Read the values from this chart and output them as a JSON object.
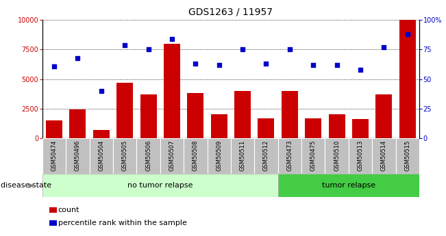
{
  "title": "GDS1263 / 11957",
  "samples": [
    "GSM50474",
    "GSM50496",
    "GSM50504",
    "GSM50505",
    "GSM50506",
    "GSM50507",
    "GSM50508",
    "GSM50509",
    "GSM50511",
    "GSM50512",
    "GSM50473",
    "GSM50475",
    "GSM50510",
    "GSM50513",
    "GSM50514",
    "GSM50515"
  ],
  "counts": [
    1500,
    2400,
    700,
    4700,
    3700,
    8000,
    3800,
    2000,
    4000,
    1700,
    4000,
    1700,
    2000,
    1600,
    3700,
    10000
  ],
  "percentiles": [
    61,
    68,
    40,
    79,
    75,
    84,
    63,
    62,
    75,
    63,
    75,
    62,
    62,
    58,
    77,
    88
  ],
  "no_tumor_count": 10,
  "tumor_count": 6,
  "bar_color": "#cc0000",
  "dot_color": "#0000cc",
  "no_tumor_color": "#ccffcc",
  "tumor_color": "#44cc44",
  "tick_label_bg": "#c0c0c0",
  "ylim_left": [
    0,
    10000
  ],
  "ylim_right": [
    0,
    100
  ],
  "yticks_left": [
    0,
    2500,
    5000,
    7500,
    10000
  ],
  "ytick_labels_left": [
    "0",
    "2500",
    "5000",
    "7500",
    "10000"
  ],
  "yticks_right": [
    0,
    25,
    50,
    75,
    100
  ],
  "ytick_labels_right": [
    "0",
    "25",
    "50",
    "75",
    "100%"
  ],
  "disease_state_label": "disease state",
  "no_tumor_label": "no tumor relapse",
  "tumor_label": "tumor relapse",
  "legend_count": "count",
  "legend_percentile": "percentile rank within the sample",
  "title_fontsize": 10,
  "tick_fontsize": 7,
  "label_fontsize": 8
}
